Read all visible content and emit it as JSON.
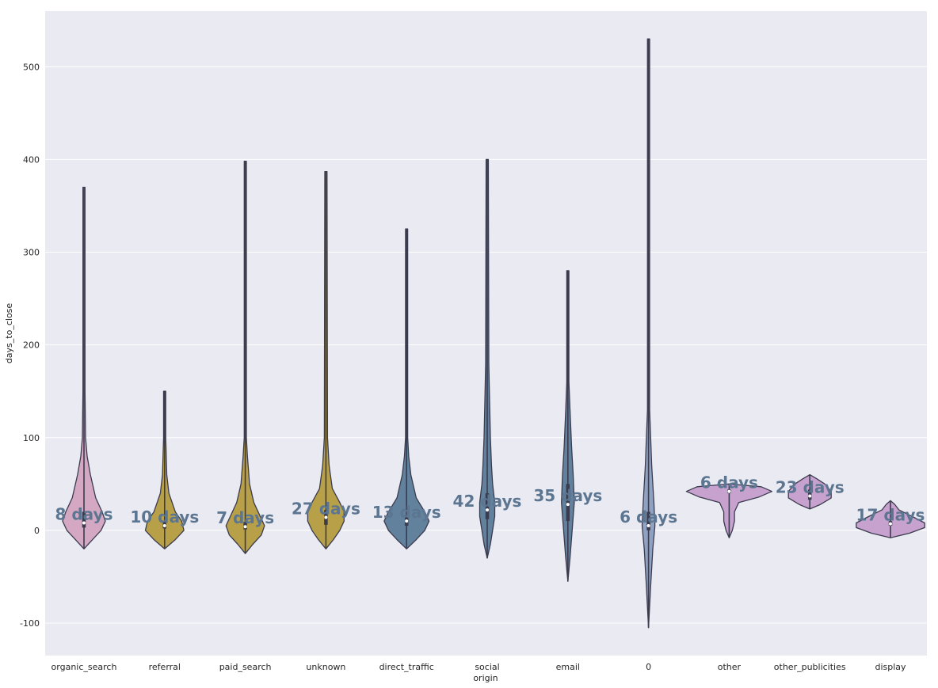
{
  "chart_data": {
    "type": "violin",
    "xlabel": "origin",
    "ylabel": "days_to_close",
    "ylim": [
      -135,
      560
    ],
    "yticks": [
      -100,
      0,
      100,
      200,
      300,
      400,
      500
    ],
    "grid": true,
    "legend": "none",
    "colors": {
      "background": "#eaeaf2",
      "grid": "#ffffff",
      "outline": "#3b3b4f",
      "annotation": "#5c7691"
    },
    "categories": [
      "organic_search",
      "referral",
      "paid_search",
      "unknown",
      "direct_traffic",
      "social",
      "email",
      "0",
      "other",
      "other_publicities",
      "display"
    ],
    "violins": [
      {
        "category": "organic_search",
        "color": "#d4a7c3",
        "min": -20,
        "max": 370,
        "median": 8,
        "q1": 3,
        "q3": 20,
        "annotation": "8 days",
        "profile": [
          [
            -20,
            0
          ],
          [
            -10,
            8
          ],
          [
            0,
            16
          ],
          [
            10,
            20
          ],
          [
            20,
            17
          ],
          [
            35,
            11
          ],
          [
            60,
            6
          ],
          [
            80,
            3
          ],
          [
            100,
            1.5
          ],
          [
            150,
            1
          ],
          [
            370,
            1
          ]
        ]
      },
      {
        "category": "referral",
        "color": "#b8a049",
        "min": -20,
        "max": 150,
        "median": 5,
        "q1": 2,
        "q3": 10,
        "annotation": "10 days",
        "profile": [
          [
            -20,
            0
          ],
          [
            -10,
            10
          ],
          [
            0,
            18
          ],
          [
            10,
            16
          ],
          [
            20,
            10
          ],
          [
            40,
            4
          ],
          [
            60,
            2
          ],
          [
            100,
            1
          ],
          [
            150,
            1
          ]
        ]
      },
      {
        "category": "paid_search",
        "color": "#b8a049",
        "min": -25,
        "max": 398,
        "median": 4,
        "q1": 1,
        "q3": 9,
        "annotation": "7 days",
        "profile": [
          [
            -25,
            0
          ],
          [
            -15,
            7
          ],
          [
            -5,
            15
          ],
          [
            5,
            18
          ],
          [
            15,
            14
          ],
          [
            30,
            8
          ],
          [
            50,
            4
          ],
          [
            80,
            2
          ],
          [
            100,
            1
          ],
          [
            398,
            1
          ]
        ]
      },
      {
        "category": "unknown",
        "color": "#b8a049",
        "min": -20,
        "max": 387,
        "median": 14,
        "q1": 6,
        "q3": 22,
        "annotation": "27 days",
        "profile": [
          [
            -20,
            0
          ],
          [
            -10,
            7
          ],
          [
            0,
            13
          ],
          [
            10,
            17
          ],
          [
            20,
            17
          ],
          [
            30,
            13
          ],
          [
            45,
            6
          ],
          [
            70,
            3
          ],
          [
            100,
            1.5
          ],
          [
            387,
            1
          ]
        ]
      },
      {
        "category": "direct_traffic",
        "color": "#61819d",
        "min": -20,
        "max": 325,
        "median": 10,
        "q1": 5,
        "q3": 16,
        "annotation": "13 days",
        "profile": [
          [
            -20,
            0
          ],
          [
            -10,
            9
          ],
          [
            0,
            17
          ],
          [
            10,
            21
          ],
          [
            20,
            17
          ],
          [
            35,
            9
          ],
          [
            60,
            4
          ],
          [
            80,
            2
          ],
          [
            100,
            1
          ],
          [
            325,
            1
          ]
        ]
      },
      {
        "category": "social",
        "color": "#61819d",
        "min": -30,
        "max": 400,
        "median": 22,
        "q1": 12,
        "q3": 40,
        "annotation": "42 days",
        "profile": [
          [
            -30,
            0
          ],
          [
            -15,
            3
          ],
          [
            0,
            5
          ],
          [
            15,
            7
          ],
          [
            30,
            7
          ],
          [
            50,
            5
          ],
          [
            70,
            4
          ],
          [
            100,
            3
          ],
          [
            150,
            2
          ],
          [
            180,
            1.5
          ],
          [
            400,
            1
          ]
        ]
      },
      {
        "category": "email",
        "color": "#61819d",
        "min": -55,
        "max": 280,
        "median": 28,
        "q1": 10,
        "q3": 50,
        "annotation": "35 days",
        "profile": [
          [
            -55,
            0
          ],
          [
            -30,
            2
          ],
          [
            0,
            4
          ],
          [
            30,
            6
          ],
          [
            60,
            5
          ],
          [
            90,
            3.5
          ],
          [
            130,
            2
          ],
          [
            160,
            1
          ],
          [
            280,
            1
          ]
        ]
      },
      {
        "category": "0",
        "color": "#8fa2c1",
        "min": -105,
        "max": 530,
        "median": 5,
        "q1": 0,
        "q3": 20,
        "annotation": "6 days",
        "profile": [
          [
            -105,
            0
          ],
          [
            -60,
            2
          ],
          [
            -20,
            4
          ],
          [
            5,
            6
          ],
          [
            30,
            5
          ],
          [
            70,
            3
          ],
          [
            100,
            2
          ],
          [
            130,
            1
          ],
          [
            530,
            1
          ]
        ]
      },
      {
        "category": "other",
        "color": "#c8a2cf",
        "min": -8,
        "max": 50,
        "median": 42,
        "q1": 40,
        "q3": 44,
        "annotation": "6 days",
        "profile": [
          [
            -8,
            0
          ],
          [
            0,
            3
          ],
          [
            10,
            5
          ],
          [
            20,
            5
          ],
          [
            30,
            9
          ],
          [
            36,
            28
          ],
          [
            42,
            40
          ],
          [
            47,
            30
          ],
          [
            50,
            0
          ]
        ]
      },
      {
        "category": "other_publicities",
        "color": "#c8a2cf",
        "min": 23,
        "max": 60,
        "median": 37,
        "q1": 33,
        "q3": 44,
        "annotation": "23 days",
        "profile": [
          [
            23,
            0
          ],
          [
            28,
            10
          ],
          [
            35,
            20
          ],
          [
            42,
            20
          ],
          [
            50,
            14
          ],
          [
            56,
            6
          ],
          [
            60,
            0
          ]
        ]
      },
      {
        "category": "display",
        "color": "#c8a2cf",
        "min": -8,
        "max": 32,
        "median": 7,
        "q1": 5,
        "q3": 10,
        "annotation": "17 days",
        "profile": [
          [
            -8,
            0
          ],
          [
            -3,
            18
          ],
          [
            3,
            32
          ],
          [
            8,
            32
          ],
          [
            14,
            22
          ],
          [
            22,
            8
          ],
          [
            28,
            4
          ],
          [
            32,
            0
          ]
        ]
      }
    ]
  }
}
